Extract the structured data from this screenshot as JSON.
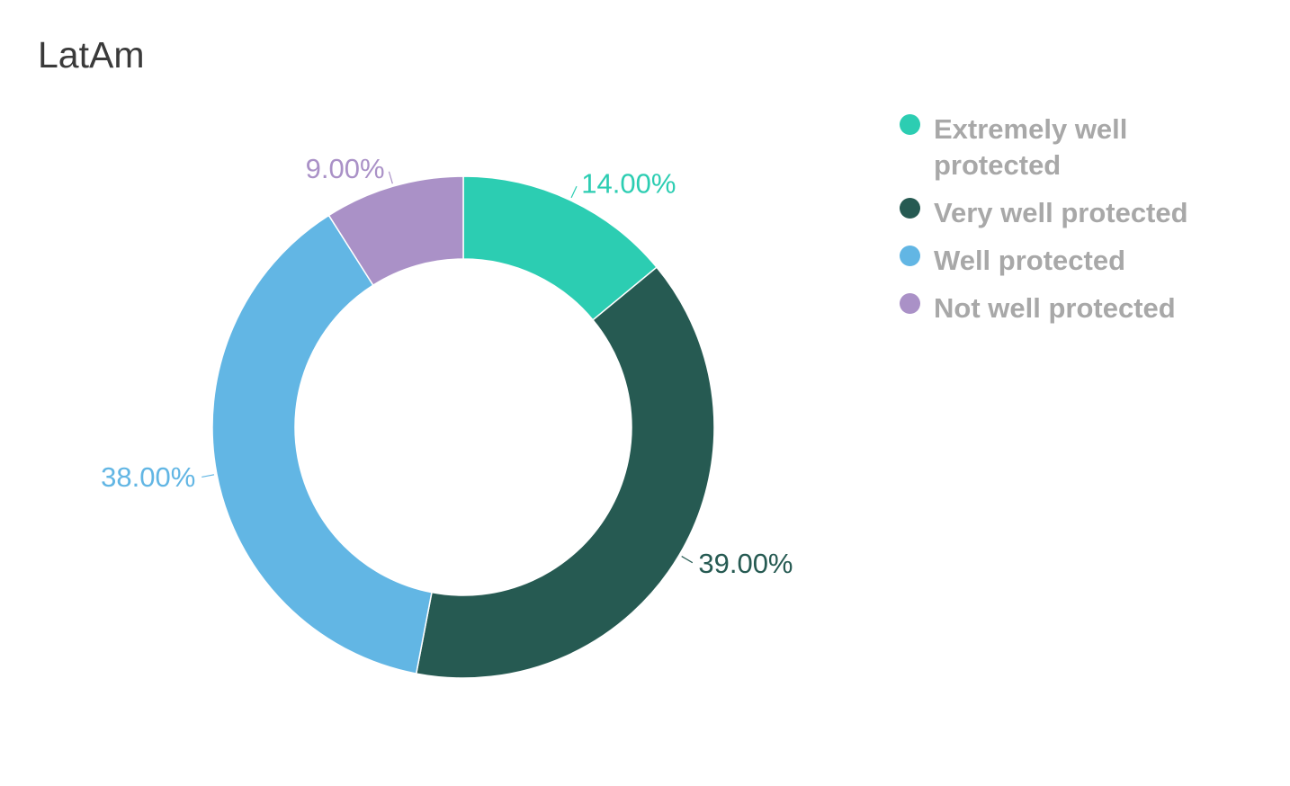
{
  "chart_data": {
    "type": "pie",
    "title": "LatAm",
    "categories": [
      "Extremely well protected",
      "Very well protected",
      "Well protected",
      "Not well protected"
    ],
    "values": [
      14,
      39,
      38,
      9
    ],
    "value_labels": [
      "14.00%",
      "39.00%",
      "38.00%",
      "9.00%"
    ],
    "colors": [
      "#2ccdb2",
      "#265a52",
      "#62b6e4",
      "#aa91c7"
    ],
    "donut": true,
    "legend_position": "right"
  }
}
